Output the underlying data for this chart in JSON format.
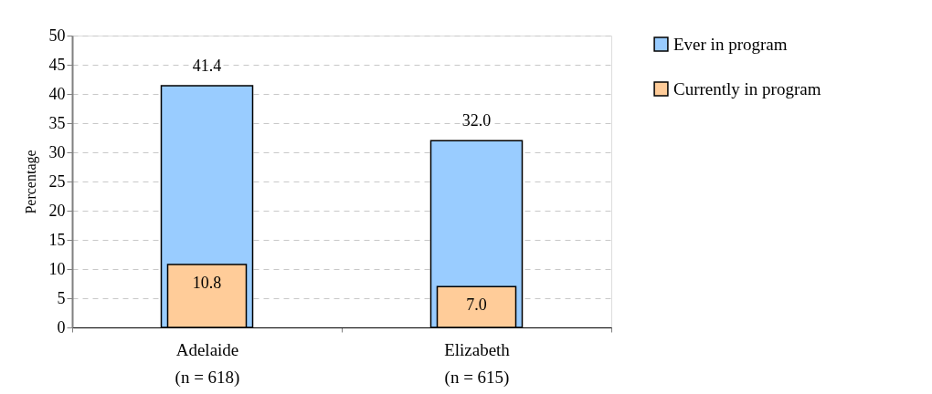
{
  "chart_data": {
    "type": "bar",
    "ylabel": "Percentage",
    "categories": [
      "Adelaide\n(n = 618)",
      "Elizabeth\n(n = 615)"
    ],
    "series": [
      {
        "name": "Ever in program",
        "color": "#99ccff",
        "values": [
          41.4,
          32.0
        ],
        "value_labels": [
          "41.4",
          "32.0"
        ]
      },
      {
        "name": "Currently in program",
        "color": "#ffcc99",
        "values": [
          10.8,
          7.0
        ],
        "value_labels": [
          "10.8",
          "7.0"
        ]
      }
    ],
    "ylim": [
      0,
      50
    ],
    "yticks": [
      0,
      5,
      10,
      15,
      20,
      25,
      30,
      35,
      40,
      45,
      50
    ],
    "grid": "y",
    "legend": "top right"
  }
}
